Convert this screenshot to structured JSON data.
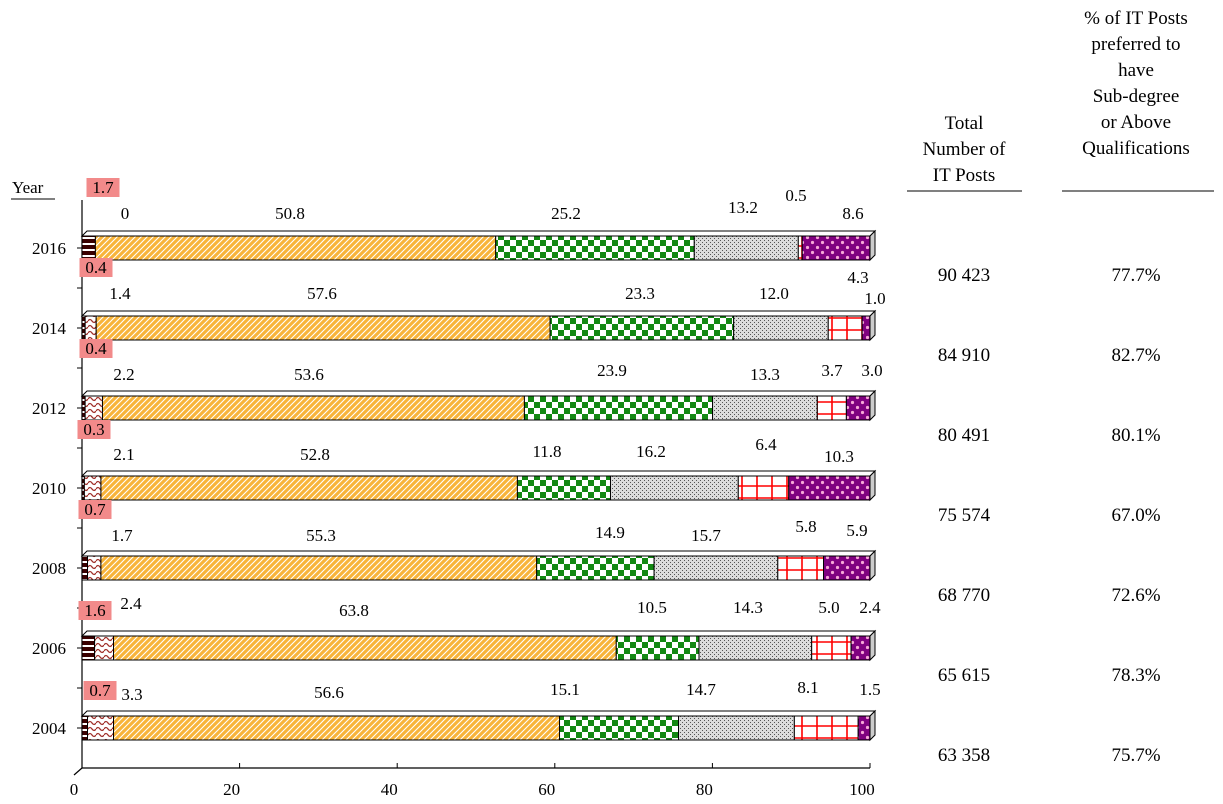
{
  "chart_data": {
    "type": "bar",
    "orientation": "horizontal",
    "stacked": true,
    "year_header": "Year",
    "categories": [
      "2016",
      "2014",
      "2012",
      "2010",
      "2008",
      "2006",
      "2004"
    ],
    "xlim": [
      0,
      100
    ],
    "xticks": [
      "0",
      "20",
      "40",
      "60",
      "80",
      "100"
    ],
    "series": [
      {
        "values": [
          "1.7",
          "0.4",
          "0.4",
          "0.3",
          "0.7",
          "1.6",
          "0.7"
        ],
        "color": "#8b0000"
      },
      {
        "values": [
          "0",
          "1.4",
          "2.2",
          "2.1",
          "1.7",
          "2.4",
          "3.3"
        ],
        "color": "#a0302a"
      },
      {
        "values": [
          "50.8",
          "57.6",
          "53.6",
          "52.8",
          "55.3",
          "63.8",
          "56.6"
        ],
        "color": "#f6a623"
      },
      {
        "values": [
          "25.2",
          "23.3",
          "23.9",
          "11.8",
          "14.9",
          "10.5",
          "15.1"
        ],
        "color": "#1f8a1f"
      },
      {
        "values": [
          "13.2",
          "12.0",
          "13.3",
          "16.2",
          "15.7",
          "14.3",
          "14.7"
        ],
        "color": "#9a9a9a"
      },
      {
        "values": [
          "0.5",
          "4.3",
          "3.7",
          "6.4",
          "5.8",
          "5.0",
          "8.1"
        ],
        "color": "#ff0000"
      },
      {
        "values": [
          "8.6",
          "1.0",
          "3.0",
          "10.3",
          "5.9",
          "2.4",
          "1.5"
        ],
        "color": "#800080"
      }
    ],
    "columns": {
      "total_header": [
        "Total",
        "Number of",
        "IT Posts"
      ],
      "pct_header": [
        "% of IT Posts",
        "preferred to",
        "have",
        "Sub-degree",
        "or Above",
        "Qualifications"
      ],
      "totals": [
        "90 423",
        "84 910",
        "80 491",
        "75 574",
        "68 770",
        "65 615",
        "63 358"
      ],
      "percentages": [
        "77.7%",
        "82.7%",
        "80.1%",
        "67.0%",
        "72.6%",
        "78.3%",
        "75.7%"
      ]
    }
  }
}
